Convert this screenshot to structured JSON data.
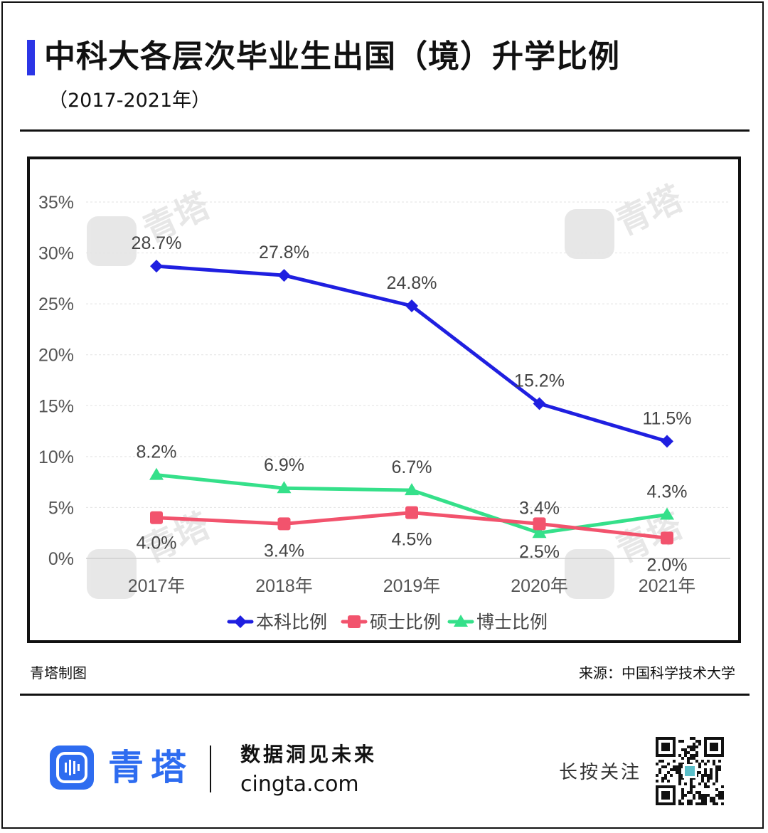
{
  "header": {
    "title": "中科大各层次毕业生出国（境）升学比例",
    "subtitle": "（2017-2021年）"
  },
  "colors": {
    "accent": "#2b35e6",
    "undergrad": "#1f1fe0",
    "master": "#f2536d",
    "phd": "#35e08a",
    "brand": "#2e6cf0"
  },
  "chart_data": {
    "type": "line",
    "categories": [
      "2017年",
      "2018年",
      "2019年",
      "2020年",
      "2021年"
    ],
    "series": [
      {
        "name": "本科比例",
        "values": [
          28.7,
          27.8,
          24.8,
          15.2,
          11.5
        ],
        "marker": "diamond",
        "labels": [
          "28.7%",
          "27.8%",
          "24.8%",
          "15.2%",
          "11.5%"
        ]
      },
      {
        "name": "硕士比例",
        "values": [
          4.0,
          3.4,
          4.5,
          3.4,
          2.0
        ],
        "marker": "square",
        "labels": [
          "4.0%",
          "3.4%",
          "4.5%",
          "3.4%",
          "2.0%"
        ]
      },
      {
        "name": "博士比例",
        "values": [
          8.2,
          6.9,
          6.7,
          2.5,
          4.3
        ],
        "marker": "triangle",
        "labels": [
          "8.2%",
          "6.9%",
          "6.7%",
          "2.5%",
          "4.3%"
        ]
      }
    ],
    "ylim": [
      0,
      35
    ],
    "yticks": [
      "0%",
      "5%",
      "10%",
      "15%",
      "20%",
      "25%",
      "30%",
      "35%"
    ],
    "grid": true,
    "legend": "bottom"
  },
  "watermark": {
    "text": "青塔"
  },
  "footer": {
    "maker": "青塔制图",
    "source": "来源：中国科学技术大学"
  },
  "brand": {
    "name": "青塔",
    "slogan": "数据洞见未来",
    "site": "cingta.com",
    "follow": "长按关注"
  }
}
